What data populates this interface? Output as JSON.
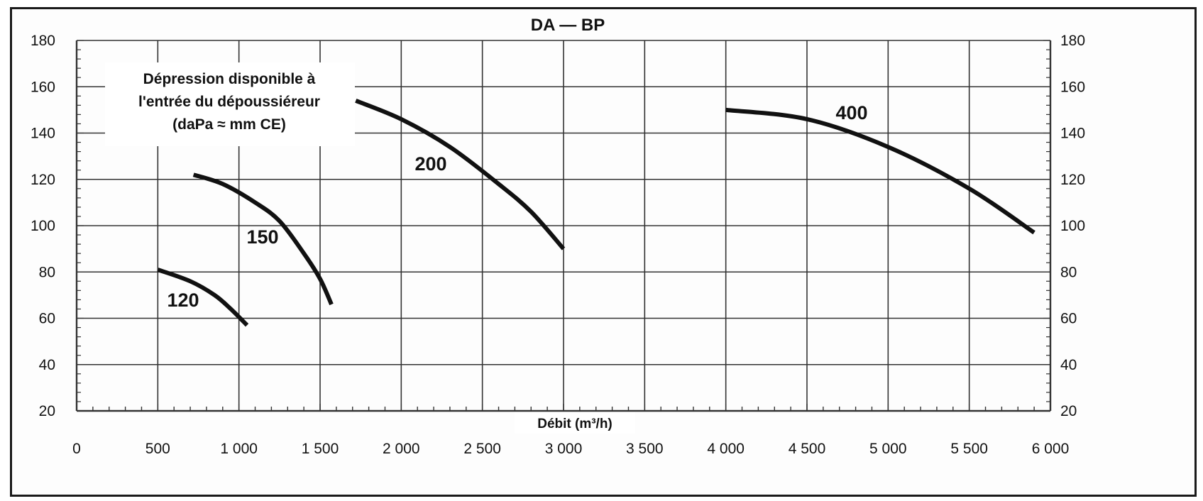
{
  "chart_data": {
    "type": "line",
    "title": "DA — BP",
    "xlabel": "Débit (m³/h)",
    "ylabel": "",
    "annotation_lines": [
      "Dépression disponible à",
      "l'entrée du dépoussiéreur",
      "(daPa ≈ mm CE)"
    ],
    "xlim": [
      0,
      6000
    ],
    "ylim": [
      20,
      180
    ],
    "x_ticks": [
      0,
      500,
      1000,
      1500,
      2000,
      2500,
      3000,
      3500,
      4000,
      4500,
      5000,
      5500,
      6000
    ],
    "x_tick_labels": [
      "0",
      "500",
      "1 000",
      "1 500",
      "2 000",
      "2 500",
      "3 000",
      "3 500",
      "4 000",
      "4 500",
      "5 000",
      "5 500",
      "6 000"
    ],
    "y_ticks": [
      20,
      40,
      60,
      80,
      100,
      120,
      140,
      160,
      180
    ],
    "y_tick_labels": [
      "20",
      "40",
      "60",
      "80",
      "100",
      "120",
      "140",
      "160",
      "180"
    ],
    "grid": true,
    "series": [
      {
        "name": "120",
        "x": [
          500,
          700,
          850,
          950,
          1050
        ],
        "y": [
          81,
          76,
          70,
          64,
          57
        ]
      },
      {
        "name": "150",
        "x": [
          720,
          900,
          1100,
          1250,
          1400,
          1500,
          1570
        ],
        "y": [
          122,
          118,
          110,
          102,
          88,
          77,
          66
        ]
      },
      {
        "name": "200",
        "x": [
          1720,
          2000,
          2300,
          2600,
          2800,
          3000
        ],
        "y": [
          154,
          146,
          134,
          118,
          106,
          90
        ]
      },
      {
        "name": "400",
        "x": [
          4000,
          4500,
          5000,
          5500,
          5900
        ],
        "y": [
          150,
          146,
          134,
          116,
          97
        ]
      }
    ],
    "colors": {
      "line": "#111111",
      "grid": "#333333",
      "frame": "#1a1a1a"
    }
  }
}
